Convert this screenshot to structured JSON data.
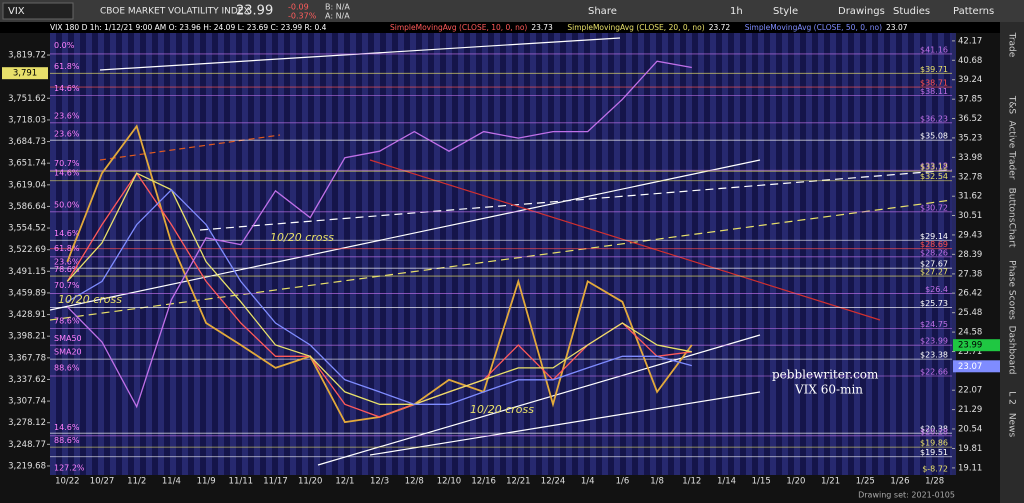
{
  "toolbar": {
    "symbol": "VIX",
    "description": "CBOE MARKET VOLATILITY INDEX",
    "last": "23.99",
    "change": "-0.09",
    "change_pct": "-0.37%",
    "bid": "B: N/A",
    "ask": "A: N/A",
    "buttons": [
      "Share",
      "1h",
      "Style",
      "Drawings",
      "Studies",
      "Patterns"
    ]
  },
  "sidebar": {
    "tabs": [
      "Trade",
      "T&S",
      "Active Trader",
      "Buttons",
      "Chart",
      "Phase Scores",
      "Dashboard",
      "L 2",
      "News"
    ]
  },
  "chart_data": {
    "type": "line",
    "title": "VIX 180 D 1h: 1/12/21 9:00 AM  O: 23.96  H: 24.09  L: 23.69  C: 23.99  R: 0.4",
    "categories": [
      "10/22",
      "10/27",
      "11/2",
      "11/4",
      "11/9",
      "11/11",
      "11/17",
      "11/20",
      "12/1",
      "12/3",
      "12/8",
      "12/10",
      "12/16",
      "12/21",
      "12/24",
      "1/4",
      "1/6",
      "1/8",
      "1/12",
      "1/14",
      "1/15",
      "1/20",
      "1/21",
      "1/25",
      "1/26",
      "1/28"
    ],
    "series": [
      {
        "color": "#e2a93b",
        "values": [
          28,
          33,
          36,
          29,
          25,
          24,
          23,
          23.5,
          20.8,
          21,
          21.5,
          22.5,
          22,
          27,
          21.5,
          27,
          26,
          22,
          24,
          null,
          null,
          null,
          null,
          null,
          null,
          null
        ]
      },
      {
        "name": "SimpleMovingAvg (CLOSE, 10, 0, no)",
        "color": "#ff5a5a",
        "last": 23.73,
        "values": [
          27,
          30,
          33,
          30,
          27,
          25,
          23.5,
          23.5,
          21.5,
          21,
          21.5,
          22,
          22.5,
          24,
          22.5,
          24,
          25,
          23.5,
          23.7,
          null,
          null,
          null,
          null,
          null,
          null,
          null
        ]
      },
      {
        "name": "SimpleMovingAvg (CLOSE, 20, 0, no)",
        "color": "#e8e06a",
        "last": 23.72,
        "values": [
          27,
          29,
          33,
          32,
          28,
          26,
          24,
          23.5,
          22,
          21.5,
          21.5,
          22,
          22.5,
          23,
          23,
          24,
          25,
          24,
          23.7,
          null,
          null,
          null,
          null,
          null,
          null,
          null
        ]
      },
      {
        "name": "SimpleMovingAvg (CLOSE, 50, 0, no)",
        "color": "#7f8cff",
        "last": 23.07,
        "values": [
          26,
          27,
          30,
          32,
          30,
          27,
          25,
          24,
          22.5,
          22,
          21.5,
          21.5,
          22,
          22.5,
          22.5,
          23,
          23.5,
          23.5,
          23.1,
          null,
          null,
          null,
          null,
          null,
          null,
          null
        ]
      },
      {
        "color": "#c070e8",
        "axis": "y2",
        "values": [
          3440,
          3390,
          3300,
          3450,
          3540,
          3530,
          3610,
          3570,
          3660,
          3670,
          3700,
          3670,
          3700,
          3690,
          3700,
          3700,
          3750,
          3810,
          3800,
          null,
          null,
          null,
          null,
          null,
          null,
          null
        ]
      }
    ],
    "ylim": [
      18.86,
      42.87
    ],
    "yscale": "log",
    "yticks": [
      42.17,
      40.68,
      39.24,
      37.85,
      36.52,
      35.23,
      33.98,
      32.78,
      31.62,
      30.51,
      29.43,
      28.39,
      27.38,
      26.42,
      25.48,
      24.58,
      23.71,
      22.07,
      21.29,
      20.54,
      19.81,
      19.11
    ],
    "y2lim": [
      3207.6,
      3856.5
    ],
    "y2scale": "log",
    "y2ticks": [
      {
        "value": 3819.72,
        "label": "3,819.72"
      },
      {
        "value": 3751.62,
        "label": "3,751.62"
      },
      {
        "value": 3718.03,
        "label": "3,718.03"
      },
      {
        "value": 3684.73,
        "label": "3,684.73"
      },
      {
        "value": 3651.74,
        "label": "3,651.74"
      },
      {
        "value": 3619.04,
        "label": "3,619.04"
      },
      {
        "value": 3586.64,
        "label": "3,586.64"
      },
      {
        "value": 3554.52,
        "label": "3,554.52"
      },
      {
        "value": 3522.69,
        "label": "3,522.69"
      },
      {
        "value": 3491.15,
        "label": "3,491.15"
      },
      {
        "value": 3459.89,
        "label": "3,459.89"
      },
      {
        "value": 3428.91,
        "label": "3,428.91"
      },
      {
        "value": 3398.21,
        "label": "3,398.21"
      },
      {
        "value": 3367.78,
        "label": "3,367.78"
      },
      {
        "value": 3337.62,
        "label": "3,337.62"
      },
      {
        "value": 3307.74,
        "label": "3,307.74"
      },
      {
        "value": 3278.12,
        "label": "3,278.12"
      },
      {
        "value": 3248.77,
        "label": "3,248.77"
      },
      {
        "value": 3219.68,
        "label": "3,219.68"
      }
    ],
    "y2_marker": {
      "value": 3791,
      "label": "3,791"
    },
    "levels": [
      {
        "value": 41.16,
        "label": "$41.16",
        "color": "#c070e8"
      },
      {
        "value": 39.71,
        "label": "$39.71",
        "color": "#e8e06a"
      },
      {
        "value": 38.71,
        "label": "$38.71",
        "color": "#ff5050"
      },
      {
        "value": 38.11,
        "label": "$38.11",
        "color": "#c070e8"
      },
      {
        "value": 36.23,
        "label": "$36.23",
        "color": "#c070e8"
      },
      {
        "value": 35.08,
        "label": "$35.08",
        "color": "#ffffff"
      },
      {
        "value": 33.18,
        "label": "$33.18",
        "color": "#c070e8"
      },
      {
        "value": 33.12,
        "label": "$33.12",
        "color": "#e8e06a"
      },
      {
        "value": 32.54,
        "label": "$32.54",
        "color": "#e8e06a"
      },
      {
        "value": 30.72,
        "label": "$30.72",
        "color": "#c070e8"
      },
      {
        "value": 29.14,
        "label": "$29.14",
        "color": "#ffffff"
      },
      {
        "value": 28.69,
        "label": "$28.69",
        "color": "#ff5050"
      },
      {
        "value": 28.26,
        "label": "$28.26",
        "color": "#c070e8"
      },
      {
        "value": 27.67,
        "label": "$27.67",
        "color": "#ffffff"
      },
      {
        "value": 27.27,
        "label": "$27.27",
        "color": "#e8e06a"
      },
      {
        "value": 26.4,
        "label": "$26.4",
        "color": "#c070e8"
      },
      {
        "value": 25.73,
        "label": "$25.73",
        "color": "#ffffff"
      },
      {
        "value": 24.75,
        "label": "$24.75",
        "color": "#c070e8"
      },
      {
        "value": 23.99,
        "label": "$23.99",
        "color": "#c070e8"
      },
      {
        "value": 23.38,
        "label": "$23.38",
        "color": "#ffffff"
      },
      {
        "value": 22.66,
        "label": "$22.66",
        "color": "#c070e8"
      },
      {
        "value": 20.38,
        "label": "$20.38",
        "color": "#ffffff"
      },
      {
        "value": 20.28,
        "label": "$20.28",
        "color": "#c070e8"
      },
      {
        "value": 19.86,
        "label": "$19.86",
        "color": "#e8e06a"
      },
      {
        "value": 19.51,
        "label": "$19.51",
        "color": "#ffffff"
      },
      {
        "value": -8.72,
        "label": "$-8.72",
        "color": "#e8e06a"
      }
    ],
    "fib_labels": [
      {
        "value": 41.8,
        "label": "0.0%"
      },
      {
        "value": 40.2,
        "label": "61.8%"
      },
      {
        "value": 38.6,
        "label": "14.6%"
      },
      {
        "value": 36.7,
        "label": "23.6%"
      },
      {
        "value": 35.5,
        "label": "23.6%"
      },
      {
        "value": 33.6,
        "label": "70.7%"
      },
      {
        "value": 33.0,
        "label": "14.6%"
      },
      {
        "value": 31.1,
        "label": "50.0%"
      },
      {
        "value": 29.5,
        "label": "14.6%"
      },
      {
        "value": 28.7,
        "label": "61.8%"
      },
      {
        "value": 28.0,
        "label": "23.6%"
      },
      {
        "value": 27.6,
        "label": "78.6%"
      },
      {
        "value": 26.8,
        "label": "70.7%"
      },
      {
        "value": 25.1,
        "label": "78.6%"
      },
      {
        "value": 24.3,
        "label": "SMA50"
      },
      {
        "value": 23.7,
        "label": "SMA20"
      },
      {
        "value": 23.0,
        "label": "88.6%"
      },
      {
        "value": 20.6,
        "label": "14.6%"
      },
      {
        "value": 20.1,
        "label": "88.6%"
      },
      {
        "value": 19.1,
        "label": "127.2%"
      }
    ],
    "annotations": [
      "10/20 cross",
      "10/20 cross",
      "10/20 cross",
      "pebblewriter.com",
      "VIX 60-min"
    ],
    "footer": "Drawing set: 2021-0105"
  }
}
